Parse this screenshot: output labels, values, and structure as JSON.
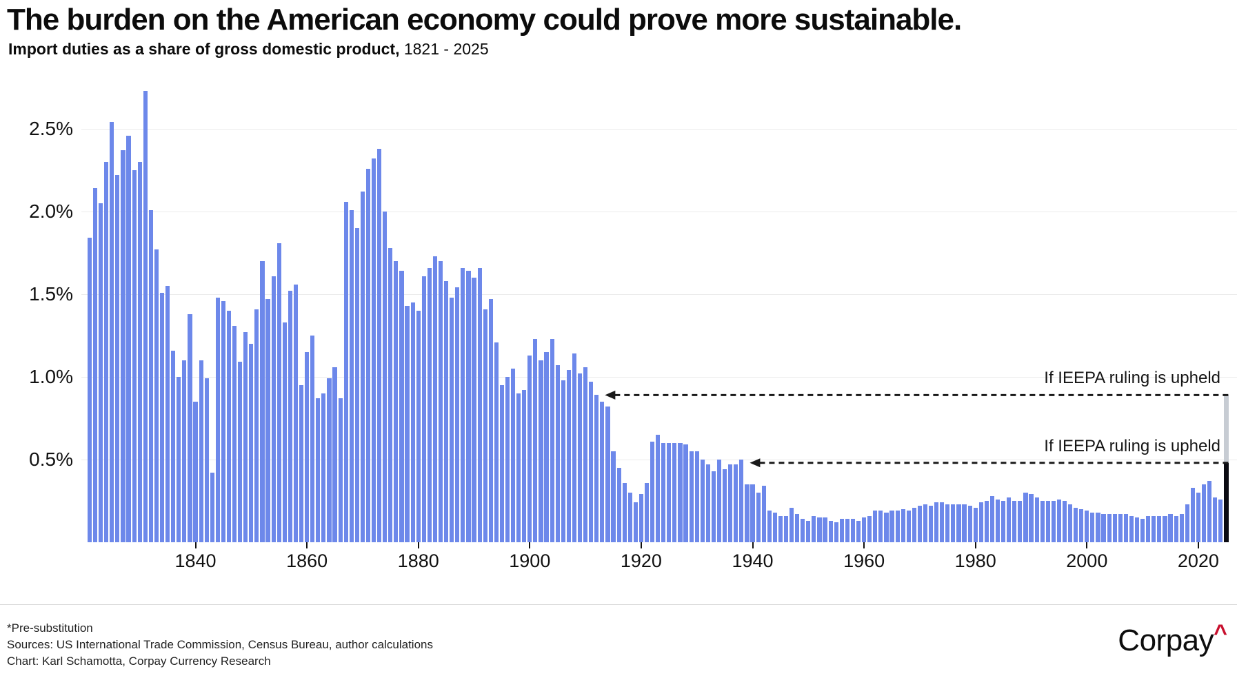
{
  "title": "The burden on the American economy could prove more sustainable.",
  "subtitle": {
    "bold": "Import duties as a share of gross domestic product,",
    "range": " 1821 - 2025"
  },
  "footer": {
    "note": "*Pre-substitution",
    "sources": "Sources: US International Trade Commission, Census Bureau, author calculations",
    "credit": "Chart: Karl Schamotta, Corpay Currency Research"
  },
  "logo": {
    "text": "Corpay",
    "caret": "^"
  },
  "colors": {
    "bar": "#6d88ea",
    "bar_actual_2025": "#0b0b12",
    "bar_scenario_2025": "#c7ccd3",
    "grid": "#ebebeb",
    "text": "#111111",
    "caret_red": "#c8102e",
    "dashed_line": "#1a1a1a"
  },
  "chart_data": {
    "type": "bar",
    "title": "Import duties as a share of gross domestic product, 1821 - 2025",
    "unit": "% of GDP",
    "start_year": 1821,
    "end_year": 2025,
    "ylim": [
      0,
      2.8
    ],
    "grid": true,
    "y_axis": {
      "ticks": [
        {
          "value": 0.5,
          "label": "0.5%"
        },
        {
          "value": 1.0,
          "label": "1.0%"
        },
        {
          "value": 1.5,
          "label": "1.5%"
        },
        {
          "value": 2.0,
          "label": "2.0%"
        },
        {
          "value": 2.5,
          "label": "2.5%"
        }
      ]
    },
    "x_axis": {
      "ticks": [
        1840,
        1860,
        1880,
        1900,
        1920,
        1940,
        1960,
        1980,
        2000,
        2020
      ]
    },
    "values": [
      1.84,
      2.14,
      2.05,
      2.3,
      2.54,
      2.22,
      2.37,
      2.46,
      2.25,
      2.3,
      2.73,
      2.01,
      1.77,
      1.51,
      1.55,
      1.16,
      1.0,
      1.1,
      1.38,
      0.85,
      1.1,
      0.99,
      0.42,
      1.48,
      1.46,
      1.4,
      1.31,
      1.09,
      1.27,
      1.2,
      1.41,
      1.7,
      1.47,
      1.61,
      1.81,
      1.33,
      1.52,
      1.56,
      0.95,
      1.15,
      1.25,
      0.87,
      0.9,
      0.99,
      1.06,
      0.87,
      2.06,
      2.01,
      1.9,
      2.12,
      2.26,
      2.32,
      2.38,
      2.0,
      1.78,
      1.7,
      1.64,
      1.43,
      1.45,
      1.4,
      1.61,
      1.66,
      1.73,
      1.7,
      1.58,
      1.48,
      1.54,
      1.66,
      1.64,
      1.6,
      1.66,
      1.41,
      1.47,
      1.21,
      0.95,
      1.0,
      1.05,
      0.9,
      0.92,
      1.13,
      1.23,
      1.1,
      1.15,
      1.23,
      1.07,
      0.98,
      1.04,
      1.14,
      1.02,
      1.06,
      0.97,
      0.89,
      0.85,
      0.82,
      0.55,
      0.45,
      0.36,
      0.3,
      0.24,
      0.29,
      0.36,
      0.61,
      0.65,
      0.6,
      0.6,
      0.6,
      0.6,
      0.59,
      0.55,
      0.55,
      0.5,
      0.47,
      0.43,
      0.5,
      0.44,
      0.47,
      0.47,
      0.5,
      0.35,
      0.35,
      0.3,
      0.34,
      0.19,
      0.18,
      0.16,
      0.16,
      0.21,
      0.17,
      0.14,
      0.13,
      0.16,
      0.15,
      0.15,
      0.13,
      0.12,
      0.14,
      0.14,
      0.14,
      0.13,
      0.15,
      0.16,
      0.19,
      0.19,
      0.18,
      0.19,
      0.19,
      0.2,
      0.19,
      0.21,
      0.22,
      0.23,
      0.22,
      0.24,
      0.24,
      0.23,
      0.23,
      0.23,
      0.23,
      0.22,
      0.21,
      0.24,
      0.25,
      0.28,
      0.26,
      0.25,
      0.27,
      0.25,
      0.25,
      0.3,
      0.29,
      0.27,
      0.25,
      0.25,
      0.25,
      0.26,
      0.25,
      0.23,
      0.21,
      0.2,
      0.19,
      0.18,
      0.18,
      0.17,
      0.17,
      0.17,
      0.17,
      0.17,
      0.16,
      0.15,
      0.14,
      0.16,
      0.16,
      0.16,
      0.16,
      0.17,
      0.16,
      0.17,
      0.23,
      0.33,
      0.3,
      0.35,
      0.37,
      0.27,
      0.26,
      0.48
    ],
    "scenario_2025": {
      "actual": 0.48,
      "if_ieepa_upheld": 0.89
    },
    "annotations": [
      {
        "label": "If IEEPA ruling is upheld",
        "value": 0.89,
        "points_to_year": 1913
      },
      {
        "label": "If IEEPA ruling is upheld",
        "value": 0.48,
        "points_to_year": 1939
      }
    ]
  }
}
